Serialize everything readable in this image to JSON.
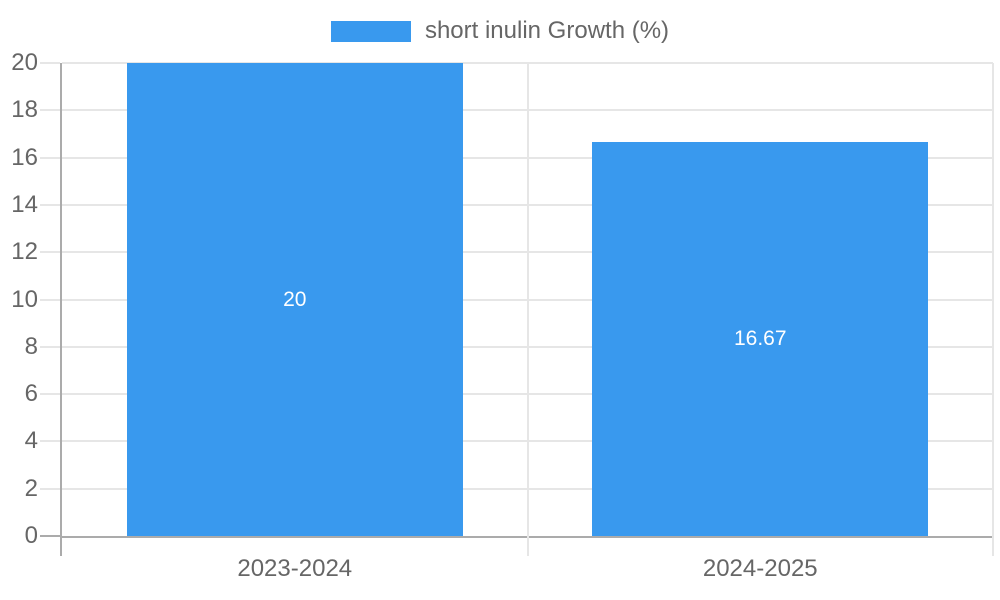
{
  "legend": {
    "label": "short inulin Growth (%)"
  },
  "chart_data": {
    "type": "bar",
    "title": "",
    "xlabel": "",
    "ylabel": "",
    "categories": [
      "2023-2024",
      "2024-2025"
    ],
    "values": [
      20,
      16.67
    ],
    "value_labels": [
      "20",
      "16.67"
    ],
    "series_name": "short inulin Growth (%)",
    "ylim": [
      0,
      20
    ],
    "yticks": [
      0,
      2,
      4,
      6,
      8,
      10,
      12,
      14,
      16,
      18,
      20
    ],
    "ytick_labels": [
      "0",
      "2",
      "4",
      "6",
      "8",
      "10",
      "12",
      "14",
      "16",
      "18",
      "20"
    ],
    "grid": true,
    "legend_position": "top",
    "colors": {
      "bar": "#3999ee",
      "grid": "#e6e6e6",
      "axis": "#ababab",
      "tick_label": "#666666",
      "legend_label": "#666666",
      "value_label": "#ffffff"
    }
  }
}
